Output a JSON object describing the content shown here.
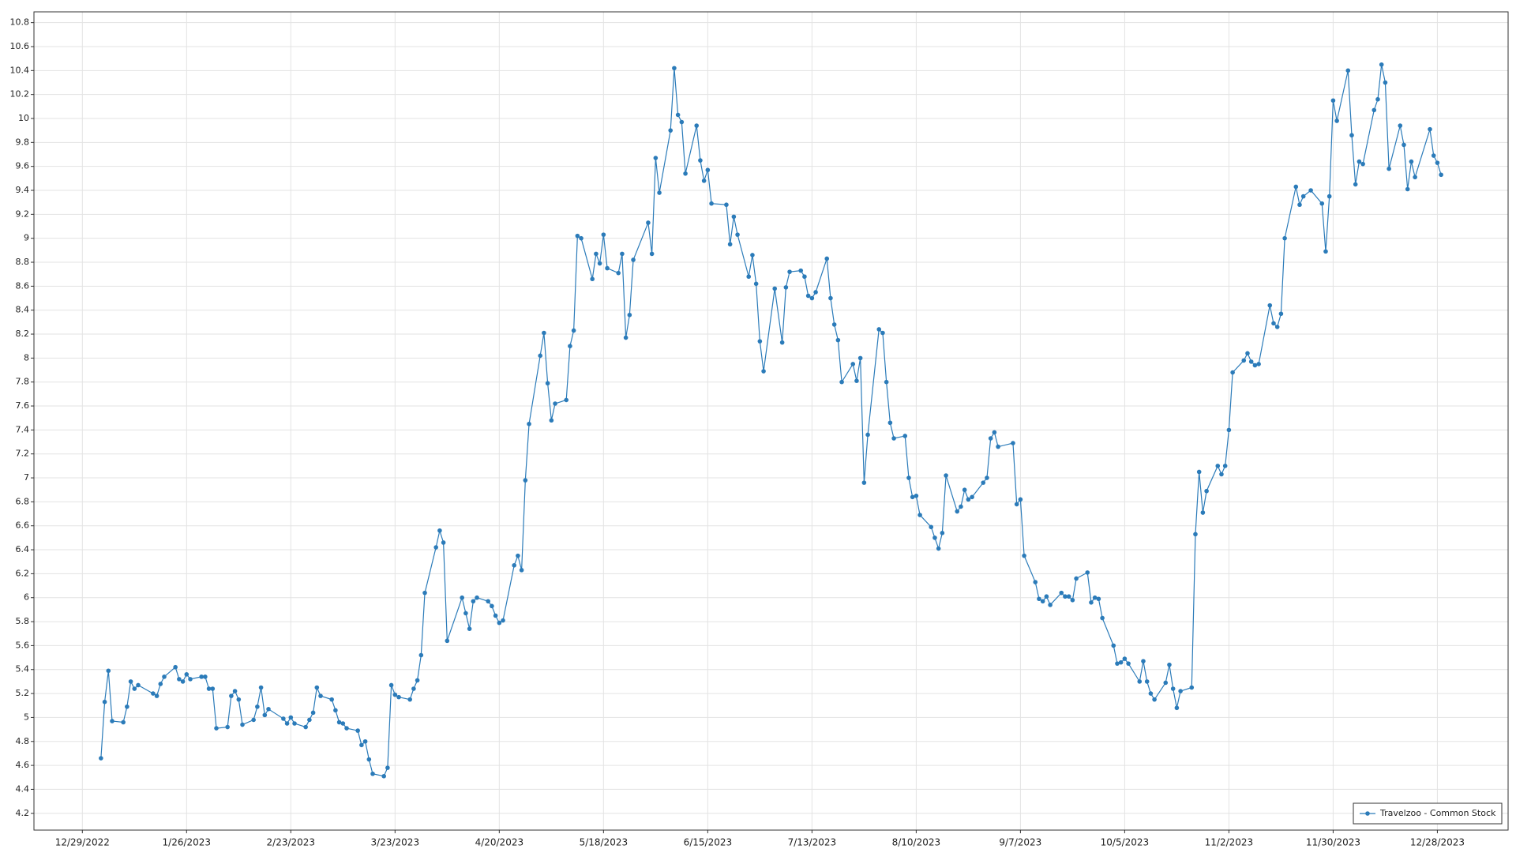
{
  "chart_data": {
    "type": "line",
    "series": [
      {
        "name": "Travelzoo - Common Stock",
        "color": "#2b7bb9",
        "values": [
          4.66,
          5.13,
          5.39,
          4.97,
          4.96,
          5.09,
          5.3,
          5.24,
          5.27,
          5.2,
          5.18,
          5.28,
          5.34,
          5.42,
          5.32,
          5.3,
          5.36,
          5.32,
          5.34,
          5.34,
          5.24,
          5.24,
          4.91,
          4.92,
          5.18,
          5.22,
          5.15,
          4.94,
          4.98,
          5.09,
          5.25,
          5.02,
          5.07,
          4.99,
          4.95,
          5.0,
          4.95,
          4.92,
          4.98,
          5.04,
          5.25,
          5.18,
          5.15,
          5.06,
          4.96,
          4.95,
          4.91,
          4.89,
          4.77,
          4.8,
          4.65,
          4.53,
          4.51,
          4.58,
          5.27,
          5.19,
          5.17,
          5.15,
          5.24,
          5.31,
          5.52,
          6.04,
          6.42,
          6.56,
          6.46,
          5.64,
          6.0,
          5.87,
          5.74,
          5.97,
          6.0,
          5.97,
          5.93,
          5.85,
          5.79,
          5.81,
          6.27,
          6.35,
          6.23,
          6.98,
          7.45,
          8.02,
          8.21,
          7.79,
          7.48,
          7.62,
          7.65,
          8.1,
          8.23,
          9.02,
          9.0,
          8.66,
          8.87,
          8.79,
          9.03,
          8.75,
          8.71,
          8.87,
          8.17,
          8.36,
          8.82,
          9.13,
          8.87,
          9.67,
          9.38,
          9.9,
          10.42,
          10.03,
          9.97,
          9.54,
          9.94,
          9.65,
          9.48,
          9.57,
          9.29,
          9.28,
          8.95,
          9.18,
          9.03,
          8.68,
          8.86,
          8.62,
          8.14,
          7.89,
          8.58,
          8.13,
          8.59,
          8.72,
          8.73,
          8.68,
          8.52,
          8.5,
          8.55,
          8.83,
          8.5,
          8.28,
          8.15,
          7.8,
          7.95,
          7.81,
          8.0,
          6.96,
          7.36,
          8.24,
          8.21,
          7.8,
          7.46,
          7.33,
          7.35,
          7.0,
          6.84,
          6.85,
          6.69,
          6.59,
          6.5,
          6.41,
          6.54,
          7.02,
          6.72,
          6.76,
          6.9,
          6.82,
          6.84,
          6.96,
          7.0,
          7.33,
          7.38,
          7.26,
          7.29,
          6.78,
          6.82,
          6.35,
          6.13,
          5.99,
          5.97,
          6.01,
          5.94,
          6.04,
          6.01,
          6.01,
          5.98,
          6.16,
          6.21,
          5.96,
          6.0,
          5.99,
          5.83,
          5.6,
          5.45,
          5.46,
          5.49,
          5.45,
          5.3,
          5.47,
          5.3,
          5.2,
          5.15,
          5.29,
          5.44,
          5.24,
          5.08,
          5.22,
          5.25,
          6.53,
          7.05,
          6.71,
          6.89,
          7.1,
          7.03,
          7.1,
          7.4,
          7.88,
          7.98,
          8.04,
          7.97,
          7.94,
          7.95,
          8.44,
          8.29,
          8.26,
          8.37,
          9.0,
          9.43,
          9.28,
          9.35,
          9.4,
          9.29,
          8.89,
          9.35,
          10.15,
          9.98,
          10.4,
          9.86,
          9.45,
          9.64,
          9.62,
          10.07,
          10.16,
          10.45,
          10.3,
          9.58,
          9.94,
          9.78,
          9.41,
          9.64,
          9.51,
          9.91,
          9.69,
          9.63,
          9.53
        ]
      }
    ],
    "x": [
      "2023-01-03",
      "2023-01-04",
      "2023-01-05",
      "2023-01-06",
      "2023-01-09",
      "2023-01-10",
      "2023-01-11",
      "2023-01-12",
      "2023-01-13",
      "2023-01-17",
      "2023-01-18",
      "2023-01-19",
      "2023-01-20",
      "2023-01-23",
      "2023-01-24",
      "2023-01-25",
      "2023-01-26",
      "2023-01-27",
      "2023-01-30",
      "2023-01-31",
      "2023-02-01",
      "2023-02-02",
      "2023-02-03",
      "2023-02-06",
      "2023-02-07",
      "2023-02-08",
      "2023-02-09",
      "2023-02-10",
      "2023-02-13",
      "2023-02-14",
      "2023-02-15",
      "2023-02-16",
      "2023-02-17",
      "2023-02-21",
      "2023-02-22",
      "2023-02-23",
      "2023-02-24",
      "2023-02-27",
      "2023-02-28",
      "2023-03-01",
      "2023-03-02",
      "2023-03-03",
      "2023-03-06",
      "2023-03-07",
      "2023-03-08",
      "2023-03-09",
      "2023-03-10",
      "2023-03-13",
      "2023-03-14",
      "2023-03-15",
      "2023-03-16",
      "2023-03-17",
      "2023-03-20",
      "2023-03-21",
      "2023-03-22",
      "2023-03-23",
      "2023-03-24",
      "2023-03-27",
      "2023-03-28",
      "2023-03-29",
      "2023-03-30",
      "2023-03-31",
      "2023-04-03",
      "2023-04-04",
      "2023-04-05",
      "2023-04-06",
      "2023-04-10",
      "2023-04-11",
      "2023-04-12",
      "2023-04-13",
      "2023-04-14",
      "2023-04-17",
      "2023-04-18",
      "2023-04-19",
      "2023-04-20",
      "2023-04-21",
      "2023-04-24",
      "2023-04-25",
      "2023-04-26",
      "2023-04-27",
      "2023-04-28",
      "2023-05-01",
      "2023-05-02",
      "2023-05-03",
      "2023-05-04",
      "2023-05-05",
      "2023-05-08",
      "2023-05-09",
      "2023-05-10",
      "2023-05-11",
      "2023-05-12",
      "2023-05-15",
      "2023-05-16",
      "2023-05-17",
      "2023-05-18",
      "2023-05-19",
      "2023-05-22",
      "2023-05-23",
      "2023-05-24",
      "2023-05-25",
      "2023-05-26",
      "2023-05-30",
      "2023-05-31",
      "2023-06-01",
      "2023-06-02",
      "2023-06-05",
      "2023-06-06",
      "2023-06-07",
      "2023-06-08",
      "2023-06-09",
      "2023-06-12",
      "2023-06-13",
      "2023-06-14",
      "2023-06-15",
      "2023-06-16",
      "2023-06-20",
      "2023-06-21",
      "2023-06-22",
      "2023-06-23",
      "2023-06-26",
      "2023-06-27",
      "2023-06-28",
      "2023-06-29",
      "2023-06-30",
      "2023-07-03",
      "2023-07-05",
      "2023-07-06",
      "2023-07-07",
      "2023-07-10",
      "2023-07-11",
      "2023-07-12",
      "2023-07-13",
      "2023-07-14",
      "2023-07-17",
      "2023-07-18",
      "2023-07-19",
      "2023-07-20",
      "2023-07-21",
      "2023-07-24",
      "2023-07-25",
      "2023-07-26",
      "2023-07-27",
      "2023-07-28",
      "2023-07-31",
      "2023-08-01",
      "2023-08-02",
      "2023-08-03",
      "2023-08-04",
      "2023-08-07",
      "2023-08-08",
      "2023-08-09",
      "2023-08-10",
      "2023-08-11",
      "2023-08-14",
      "2023-08-15",
      "2023-08-16",
      "2023-08-17",
      "2023-08-18",
      "2023-08-21",
      "2023-08-22",
      "2023-08-23",
      "2023-08-24",
      "2023-08-25",
      "2023-08-28",
      "2023-08-29",
      "2023-08-30",
      "2023-08-31",
      "2023-09-01",
      "2023-09-05",
      "2023-09-06",
      "2023-09-07",
      "2023-09-08",
      "2023-09-11",
      "2023-09-12",
      "2023-09-13",
      "2023-09-14",
      "2023-09-15",
      "2023-09-18",
      "2023-09-19",
      "2023-09-20",
      "2023-09-21",
      "2023-09-22",
      "2023-09-25",
      "2023-09-26",
      "2023-09-27",
      "2023-09-28",
      "2023-09-29",
      "2023-10-02",
      "2023-10-03",
      "2023-10-04",
      "2023-10-05",
      "2023-10-06",
      "2023-10-09",
      "2023-10-10",
      "2023-10-11",
      "2023-10-12",
      "2023-10-13",
      "2023-10-16",
      "2023-10-17",
      "2023-10-18",
      "2023-10-19",
      "2023-10-20",
      "2023-10-23",
      "2023-10-24",
      "2023-10-25",
      "2023-10-26",
      "2023-10-27",
      "2023-10-30",
      "2023-10-31",
      "2023-11-01",
      "2023-11-02",
      "2023-11-03",
      "2023-11-06",
      "2023-11-07",
      "2023-11-08",
      "2023-11-09",
      "2023-11-10",
      "2023-11-13",
      "2023-11-14",
      "2023-11-15",
      "2023-11-16",
      "2023-11-17",
      "2023-11-20",
      "2023-11-21",
      "2023-11-22",
      "2023-11-24",
      "2023-11-27",
      "2023-11-28",
      "2023-11-29",
      "2023-11-30",
      "2023-12-01",
      "2023-12-04",
      "2023-12-05",
      "2023-12-06",
      "2023-12-07",
      "2023-12-08",
      "2023-12-11",
      "2023-12-12",
      "2023-12-13",
      "2023-12-14",
      "2023-12-15",
      "2023-12-18",
      "2023-12-19",
      "2023-12-20",
      "2023-12-21",
      "2023-12-22",
      "2023-12-26",
      "2023-12-27",
      "2023-12-28",
      "2023-12-29"
    ],
    "xlim": [
      "2022-12-16",
      "2024-01-16"
    ],
    "xticks": [
      {
        "value": "2022-12-29",
        "label": "12/29/2022"
      },
      {
        "value": "2023-01-26",
        "label": "1/26/2023"
      },
      {
        "value": "2023-02-23",
        "label": "2/23/2023"
      },
      {
        "value": "2023-03-23",
        "label": "3/23/2023"
      },
      {
        "value": "2023-04-20",
        "label": "4/20/2023"
      },
      {
        "value": "2023-05-18",
        "label": "5/18/2023"
      },
      {
        "value": "2023-06-15",
        "label": "6/15/2023"
      },
      {
        "value": "2023-07-13",
        "label": "7/13/2023"
      },
      {
        "value": "2023-08-10",
        "label": "8/10/2023"
      },
      {
        "value": "2023-09-07",
        "label": "9/7/2023"
      },
      {
        "value": "2023-10-05",
        "label": "10/5/2023"
      },
      {
        "value": "2023-11-02",
        "label": "11/2/2023"
      },
      {
        "value": "2023-11-30",
        "label": "11/30/2023"
      },
      {
        "value": "2023-12-28",
        "label": "12/28/2023"
      }
    ],
    "ylim": [
      4.06,
      10.89
    ],
    "yticks": [
      4.2,
      4.4,
      4.6,
      4.8,
      5,
      5.2,
      5.4,
      5.6,
      5.8,
      6,
      6.2,
      6.4,
      6.6,
      6.8,
      7,
      7.2,
      7.4,
      7.6,
      7.8,
      8,
      8.2,
      8.4,
      8.6,
      8.8,
      9,
      9.2,
      9.4,
      9.6,
      9.8,
      10,
      10.2,
      10.4,
      10.6,
      10.8
    ],
    "grid": true,
    "legend": "lower right"
  }
}
